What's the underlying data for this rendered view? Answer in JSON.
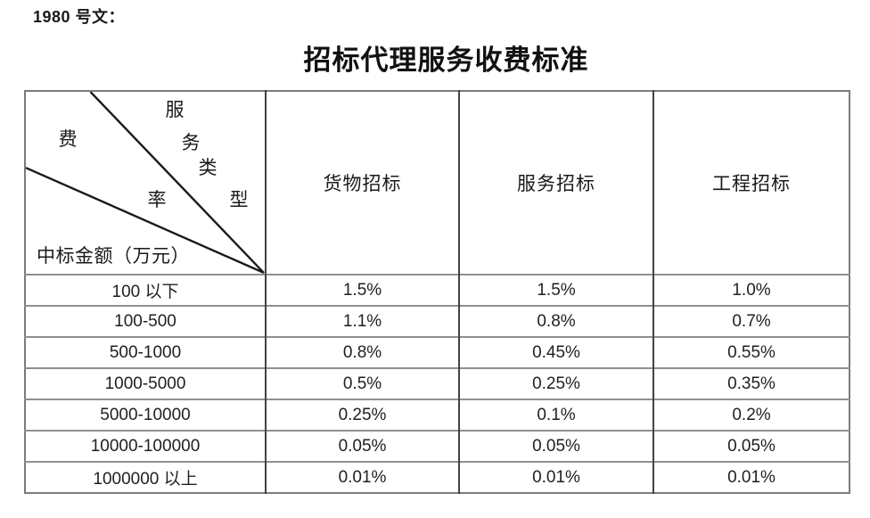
{
  "page": {
    "doc_ref": "1980 号文：",
    "title": "招标代理服务收费标准"
  },
  "table": {
    "corner": {
      "top_label": "服务类型",
      "top_label_chars": [
        "服",
        "务",
        "类",
        "型"
      ],
      "mid_label": "费率",
      "mid_label_chars": [
        "费",
        "率"
      ],
      "bottom_label": "中标金额（万元）"
    },
    "columns": [
      "货物招标",
      "服务招标",
      "工程招标"
    ],
    "rows": [
      {
        "label": "100 以下",
        "values": [
          "1.5%",
          "1.5%",
          "1.0%"
        ]
      },
      {
        "label": "100-500",
        "values": [
          "1.1%",
          "0.8%",
          "0.7%"
        ]
      },
      {
        "label": "500-1000",
        "values": [
          "0.8%",
          "0.45%",
          "0.55%"
        ]
      },
      {
        "label": "1000-5000",
        "values": [
          "0.5%",
          "0.25%",
          "0.35%"
        ]
      },
      {
        "label": "5000-10000",
        "values": [
          "0.25%",
          "0.1%",
          "0.2%"
        ]
      },
      {
        "label": "10000-100000",
        "values": [
          "0.05%",
          "0.05%",
          "0.05%"
        ]
      },
      {
        "label": "1000000 以上",
        "values": [
          "0.01%",
          "0.01%",
          "0.01%"
        ]
      }
    ]
  },
  "colors": {
    "background": "#ffffff",
    "text": "#1a1a1a",
    "border_outer": "#7b7b7b",
    "border_vertical": "#424242",
    "border_horizontal": "#8f8f8f",
    "diagonal_line": "#1a1a1a"
  }
}
